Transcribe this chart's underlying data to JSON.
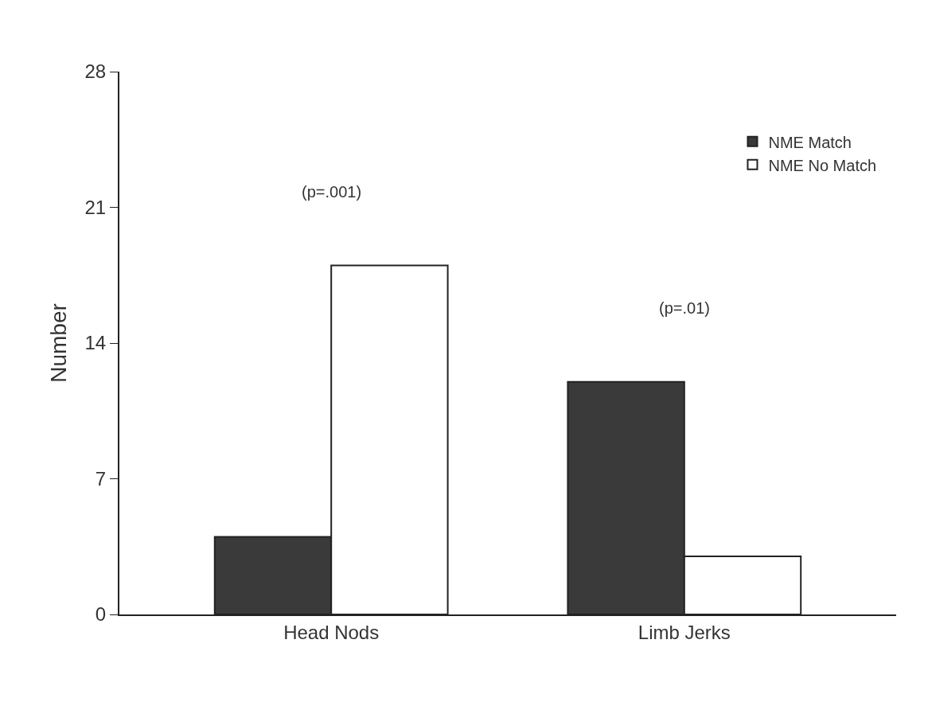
{
  "chart_data": {
    "type": "bar",
    "ylabel": "Number",
    "categories": [
      "Head Nods",
      "Limb Jerks"
    ],
    "series": [
      {
        "name": "NME Match",
        "color": "#3a3a3a",
        "values": [
          4,
          12
        ]
      },
      {
        "name": "NME No Match",
        "color": "#ffffff",
        "values": [
          18,
          3
        ]
      }
    ],
    "ylim": [
      0,
      28
    ],
    "yticks": [
      0,
      7,
      14,
      21,
      28
    ],
    "grid": false,
    "legend": "top right",
    "annotations": [
      "(p=.001)",
      "(p=.01)"
    ]
  }
}
